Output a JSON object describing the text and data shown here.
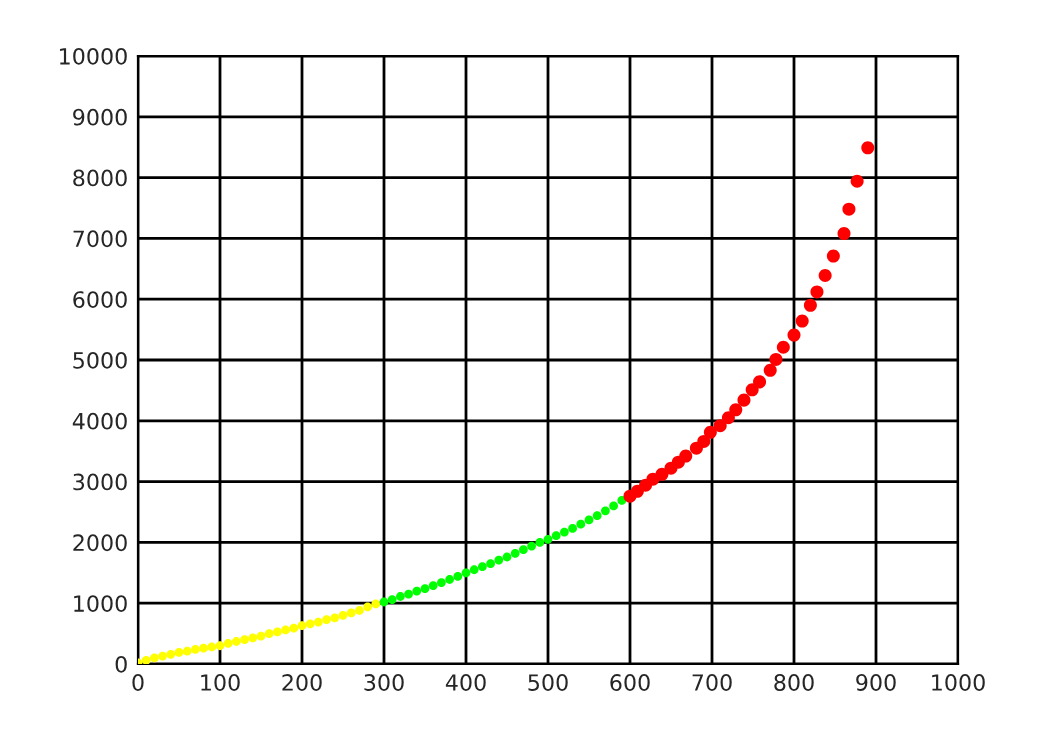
{
  "chart_data": {
    "type": "scatter",
    "xlim": [
      0,
      1000
    ],
    "ylim": [
      0,
      10000
    ],
    "xticks": [
      0,
      100,
      200,
      300,
      400,
      500,
      600,
      700,
      800,
      900,
      1000
    ],
    "yticks": [
      0,
      1000,
      2000,
      3000,
      4000,
      5000,
      6000,
      7000,
      8000,
      9000,
      10000
    ],
    "grid": true,
    "marker": "circle",
    "series": [
      {
        "color": "#ffff00",
        "x": [
          0,
          10,
          20,
          30,
          40,
          50,
          60,
          70,
          80,
          90,
          100,
          110,
          120,
          130,
          140,
          150,
          160,
          170,
          180,
          190,
          200,
          210,
          220,
          230,
          240,
          250,
          260,
          270,
          280,
          290
        ],
        "values": [
          20,
          60,
          100,
          130,
          160,
          190,
          210,
          240,
          260,
          280,
          300,
          340,
          370,
          400,
          430,
          460,
          500,
          530,
          560,
          590,
          630,
          660,
          690,
          730,
          760,
          800,
          840,
          880,
          940,
          990
        ]
      },
      {
        "color": "#00ff00",
        "x": [
          300,
          310,
          320,
          330,
          340,
          350,
          360,
          370,
          380,
          390,
          400,
          410,
          420,
          430,
          440,
          450,
          460,
          470,
          480,
          490,
          500,
          510,
          520,
          530,
          540,
          550,
          560,
          570,
          580,
          590
        ],
        "values": [
          1020,
          1060,
          1110,
          1150,
          1200,
          1240,
          1290,
          1340,
          1390,
          1440,
          1500,
          1550,
          1600,
          1650,
          1710,
          1760,
          1820,
          1880,
          1940,
          2000,
          2050,
          2110,
          2170,
          2230,
          2300,
          2370,
          2440,
          2520,
          2600,
          2690
        ]
      },
      {
        "color": "#ff0000",
        "x": [
          600,
          609,
          619,
          628,
          639,
          650,
          659,
          668,
          681,
          690,
          698,
          710,
          720,
          729,
          739,
          749,
          758,
          771,
          778,
          787,
          800,
          810,
          820,
          828,
          838,
          848,
          861,
          867,
          877,
          890
        ],
        "values": [
          2760,
          2840,
          2940,
          3040,
          3120,
          3220,
          3320,
          3420,
          3550,
          3660,
          3810,
          3920,
          4050,
          4180,
          4340,
          4510,
          4640,
          4830,
          5010,
          5210,
          5410,
          5640,
          5900,
          6120,
          6390,
          6710,
          7080,
          7480,
          7940,
          8490
        ]
      }
    ]
  }
}
